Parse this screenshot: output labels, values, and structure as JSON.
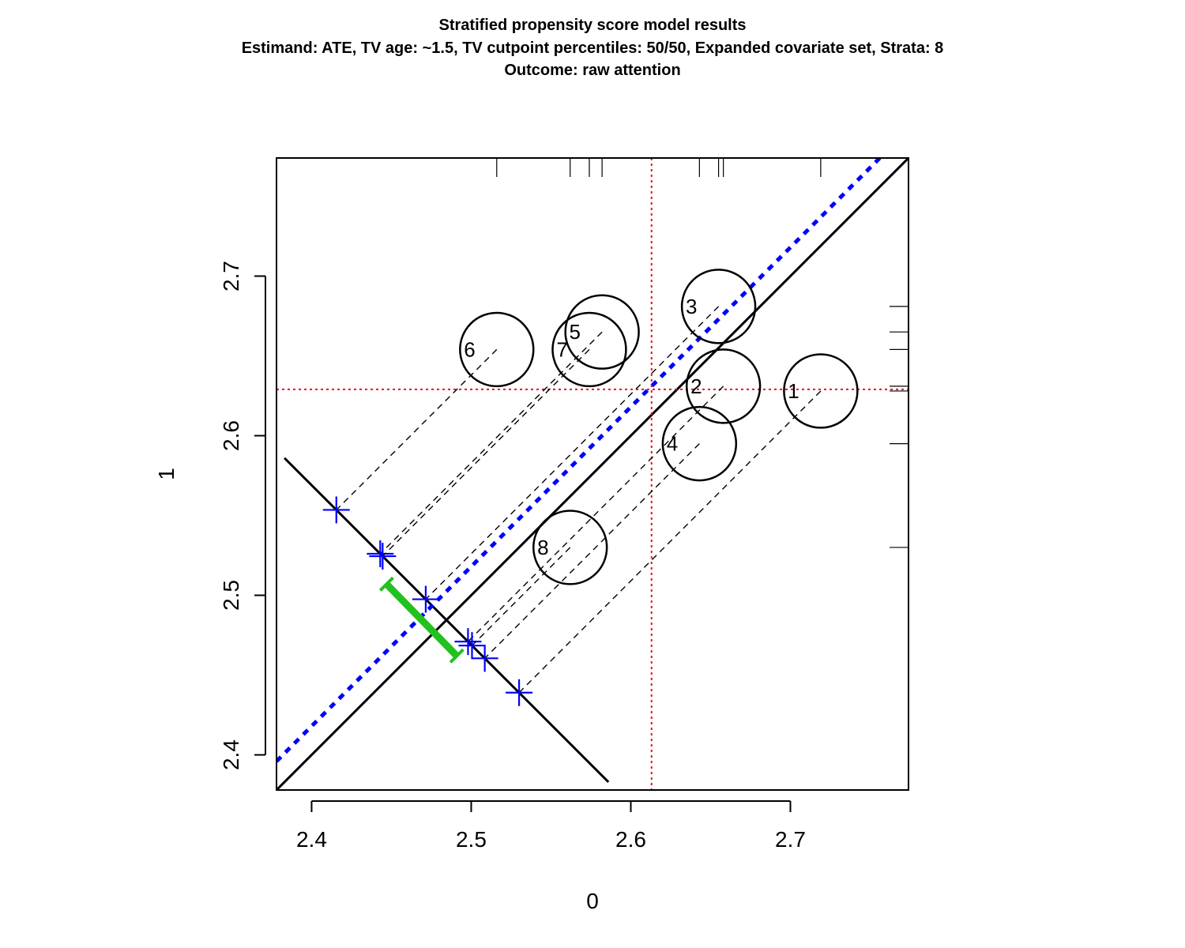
{
  "chart_data": {
    "type": "scatter",
    "title_lines": [
      "Stratified propensity score model results",
      "Estimand: ATE, TV age: ~1.5, TV cutpoint percentiles: 50/50, Expanded covariate set, Strata: 8",
      "Outcome: raw attention"
    ],
    "xlabel": "0",
    "ylabel": "1",
    "xlim": [
      2.378,
      2.774
    ],
    "ylim": [
      2.378,
      2.774
    ],
    "xticks": [
      2.4,
      2.5,
      2.6,
      2.7
    ],
    "yticks": [
      2.4,
      2.5,
      2.6,
      2.7
    ],
    "xtick_labels": [
      "2.4",
      "2.5",
      "2.6",
      "2.7"
    ],
    "ytick_labels": [
      "2.4",
      "2.5",
      "2.6",
      "2.7"
    ],
    "strata": [
      {
        "label": "1",
        "x": 2.719,
        "y": 2.628,
        "size": 1.0
      },
      {
        "label": "2",
        "x": 2.658,
        "y": 2.631,
        "size": 1.0
      },
      {
        "label": "3",
        "x": 2.655,
        "y": 2.681,
        "size": 1.0
      },
      {
        "label": "4",
        "x": 2.643,
        "y": 2.595,
        "size": 1.0
      },
      {
        "label": "5",
        "x": 2.582,
        "y": 2.665,
        "size": 1.0
      },
      {
        "label": "6",
        "x": 2.516,
        "y": 2.654,
        "size": 1.0
      },
      {
        "label": "7",
        "x": 2.574,
        "y": 2.654,
        "size": 1.0
      },
      {
        "label": "8",
        "x": 2.562,
        "y": 2.53,
        "size": 1.0
      }
    ],
    "projection_line": {
      "x1": 2.383,
      "y1": 2.586,
      "x2": 2.586,
      "y2": 2.383
    },
    "identity_line": {
      "x1": 2.378,
      "y1": 2.378,
      "x2": 2.774,
      "y2": 2.774
    },
    "effect_line": {
      "x1": 2.378,
      "y1": 2.396,
      "x2": 2.756,
      "y2": 2.774
    },
    "effect_ci": {
      "x1": 2.447,
      "y1": 2.507,
      "x2": 2.491,
      "y2": 2.462
    },
    "mean_x": 2.613,
    "mean_y": 2.629,
    "colors": {
      "axis": "#000000",
      "identity": "#000000",
      "effect": "#0000ff",
      "projection_marker": "#0000ff",
      "ci": "#22c11f",
      "mean_lines": "#e8141c"
    }
  }
}
